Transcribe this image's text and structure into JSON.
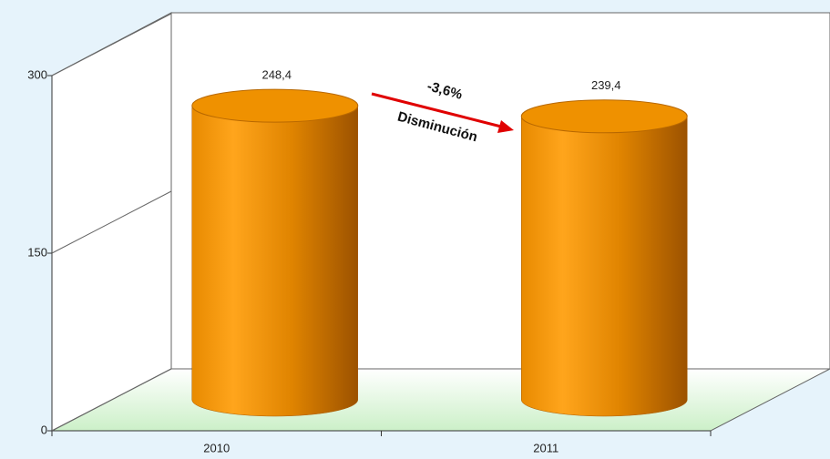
{
  "chart_data": {
    "type": "cylinder",
    "categories": [
      "2010",
      "2011"
    ],
    "values": [
      248.4,
      239.4
    ],
    "value_labels": [
      "248,4",
      "239,4"
    ],
    "color": "#f29200",
    "ylim": [
      0,
      300
    ],
    "yticks": [
      0,
      150,
      300
    ],
    "annotations": [
      "-3,6%",
      "Disminución"
    ],
    "arrow_color": "#e00000"
  }
}
